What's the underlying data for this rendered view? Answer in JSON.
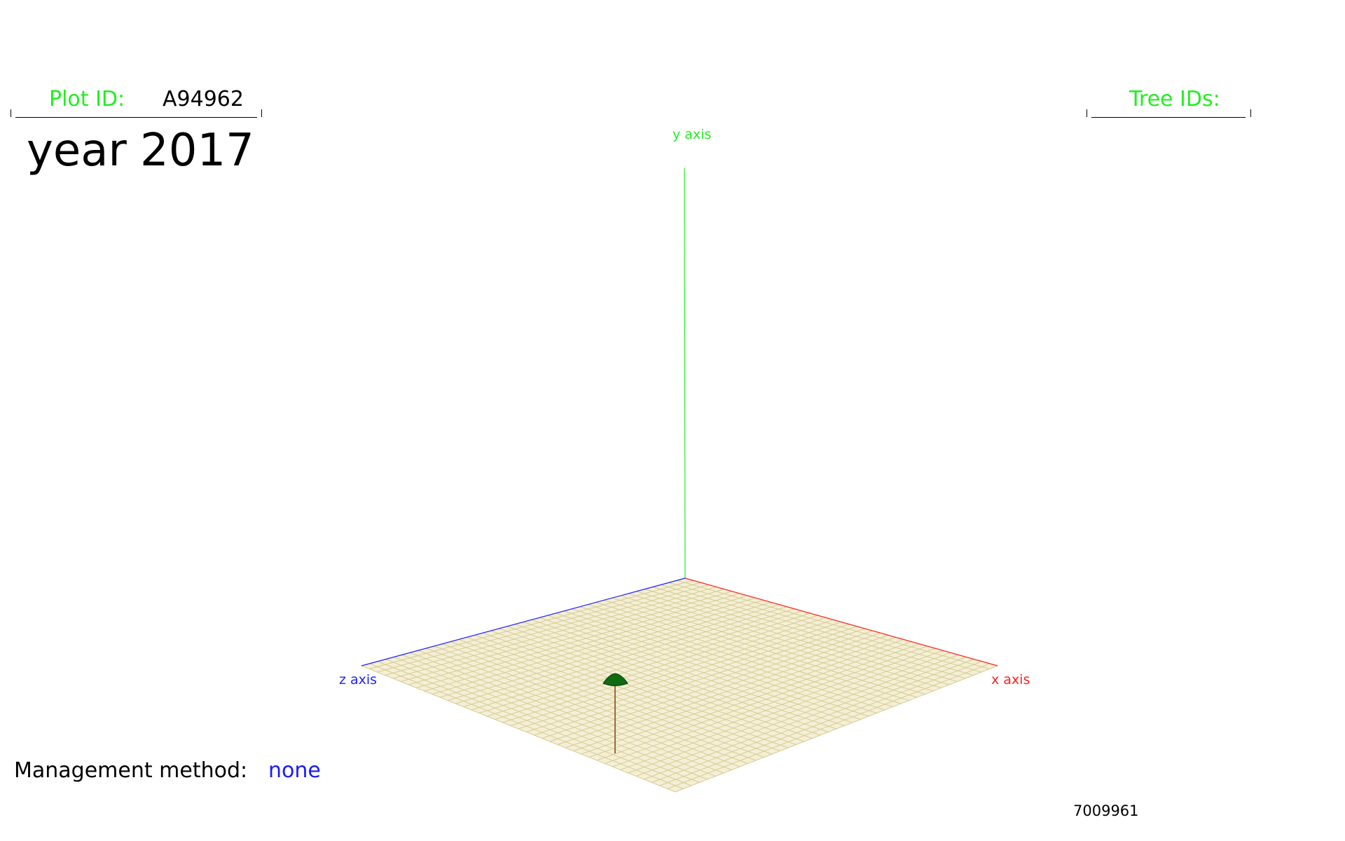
{
  "header": {
    "plot_id_label": "Plot ID:",
    "plot_id_value": "A94962",
    "tree_ids_label": "Tree IDs:",
    "tree_ids_value": ""
  },
  "year": {
    "label": "year",
    "value": "2017"
  },
  "management": {
    "label": "Management method:",
    "value": "none"
  },
  "footer": {
    "seed_number": "7009961"
  },
  "axes": {
    "x_label": "x axis",
    "y_label": "y axis",
    "z_label": "z axis",
    "x_color": "#ff2222",
    "y_color": "#22ee22",
    "z_color": "#2222ff"
  },
  "colors": {
    "label_green": "#22ee22",
    "value_blue": "#1a1aff",
    "ground_fill": "#f4efd6",
    "ground_grid": "#d6cc93",
    "tree_crown": "#0f6b0f",
    "tree_stem": "#9a6a3a"
  }
}
